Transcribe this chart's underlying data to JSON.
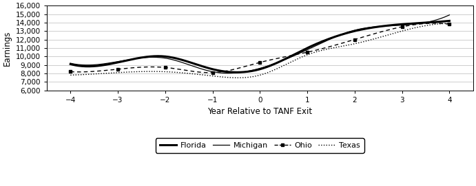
{
  "x": [
    -4,
    -3,
    -2,
    -1,
    0,
    1,
    2,
    3,
    4
  ],
  "florida": [
    9100,
    9300,
    10000,
    8500,
    8500,
    11000,
    13000,
    13800,
    14200
  ],
  "michigan": [
    9200,
    9400,
    9800,
    8200,
    8600,
    10800,
    13100,
    13700,
    14900
  ],
  "ohio": [
    8200,
    8500,
    8700,
    8100,
    9300,
    10500,
    12000,
    13500,
    13800
  ],
  "texas": [
    7800,
    8100,
    8200,
    7700,
    7800,
    10200,
    11500,
    13000,
    13900
  ],
  "xlabel": "Year Relative to TANF Exit",
  "ylabel": "Earnings",
  "ylim": [
    6000,
    16000
  ],
  "yticks": [
    6000,
    7000,
    8000,
    9000,
    10000,
    11000,
    12000,
    13000,
    14000,
    15000,
    16000
  ],
  "xticks": [
    -4,
    -3,
    -2,
    -1,
    0,
    1,
    2,
    3,
    4
  ],
  "bg_color": "#ffffff",
  "line_color": "#000000"
}
